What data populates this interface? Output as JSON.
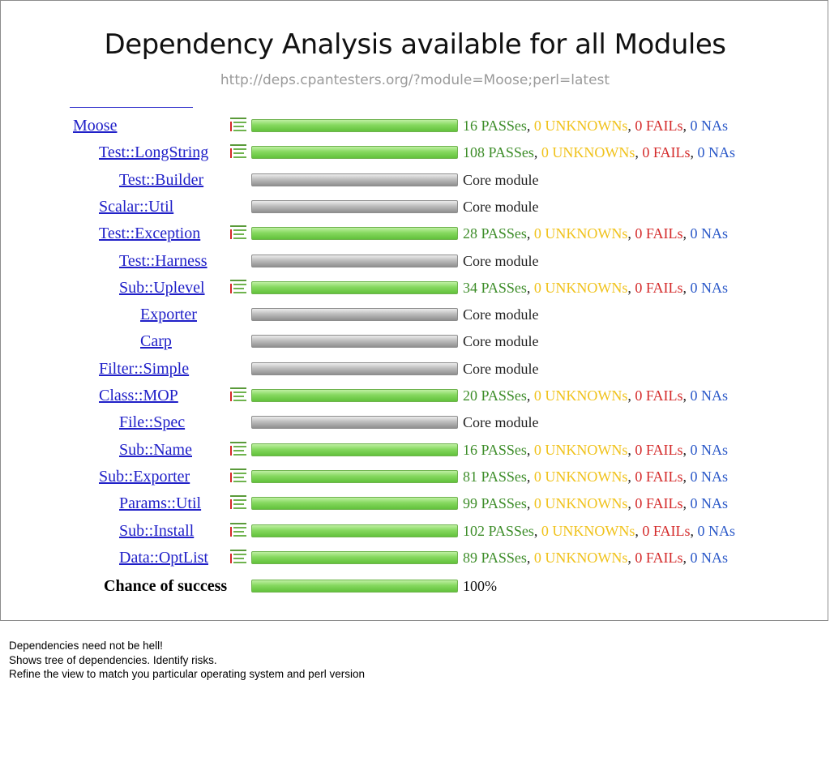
{
  "slide": {
    "title": "Dependency Analysis available for all Modules",
    "url": "http://deps.cpantesters.org/?module=Moose;perl=latest"
  },
  "colors": {
    "pass": "#3d8d29",
    "unknown": "#f0c21b",
    "fail": "#d42a2a",
    "na": "#2a58c8",
    "link": "#2020c8"
  },
  "dependencies": [
    {
      "name": "Moose",
      "level": 0,
      "type": "pass",
      "passes": "16 PASSes",
      "unknowns": "0 UNKNOWNs",
      "fails": "0 FAILs",
      "nas": "0 NAs",
      "icon": "tree-icon"
    },
    {
      "name": "Test::LongString",
      "level": 1,
      "type": "pass",
      "passes": "108 PASSes",
      "unknowns": "0 UNKNOWNs",
      "fails": "0 FAILs",
      "nas": "0 NAs",
      "icon": "tree-icon"
    },
    {
      "name": "Test::Builder",
      "level": 2,
      "type": "core",
      "core": "Core module"
    },
    {
      "name": "Scalar::Util",
      "level": 1,
      "type": "core",
      "core": "Core module"
    },
    {
      "name": "Test::Exception",
      "level": 1,
      "type": "pass",
      "passes": "28 PASSes",
      "unknowns": "0 UNKNOWNs",
      "fails": "0 FAILs",
      "nas": "0 NAs",
      "icon": "tree-icon"
    },
    {
      "name": "Test::Harness",
      "level": 2,
      "type": "core",
      "core": "Core module"
    },
    {
      "name": "Sub::Uplevel",
      "level": 2,
      "type": "pass",
      "passes": "34 PASSes",
      "unknowns": "0 UNKNOWNs",
      "fails": "0 FAILs",
      "nas": "0 NAs",
      "icon": "tree-icon"
    },
    {
      "name": "Exporter",
      "level": 3,
      "type": "core",
      "core": "Core module"
    },
    {
      "name": "Carp",
      "level": 3,
      "type": "core",
      "core": "Core module"
    },
    {
      "name": "Filter::Simple",
      "level": 1,
      "type": "core",
      "core": "Core module"
    },
    {
      "name": "Class::MOP",
      "level": 1,
      "type": "pass",
      "passes": "20 PASSes",
      "unknowns": "0 UNKNOWNs",
      "fails": "0 FAILs",
      "nas": "0 NAs",
      "icon": "tree-icon"
    },
    {
      "name": "File::Spec",
      "level": 2,
      "type": "core",
      "core": "Core module"
    },
    {
      "name": "Sub::Name",
      "level": 2,
      "type": "pass",
      "passes": "16 PASSes",
      "unknowns": "0 UNKNOWNs",
      "fails": "0 FAILs",
      "nas": "0 NAs",
      "icon": "tree-icon"
    },
    {
      "name": "Sub::Exporter",
      "level": 1,
      "type": "pass",
      "passes": "81 PASSes",
      "unknowns": "0 UNKNOWNs",
      "fails": "0 FAILs",
      "nas": "0 NAs",
      "icon": "tree-icon"
    },
    {
      "name": "Params::Util",
      "level": 2,
      "type": "pass",
      "passes": "99 PASSes",
      "unknowns": "0 UNKNOWNs",
      "fails": "0 FAILs",
      "nas": "0 NAs",
      "icon": "tree-icon"
    },
    {
      "name": "Sub::Install",
      "level": 2,
      "type": "pass",
      "passes": "102 PASSes",
      "unknowns": "0 UNKNOWNs",
      "fails": "0 FAILs",
      "nas": "0 NAs",
      "icon": "tree-icon"
    },
    {
      "name": "Data::OptList",
      "level": 2,
      "type": "pass",
      "passes": "89 PASSes",
      "unknowns": "0 UNKNOWNs",
      "fails": "0 FAILs",
      "nas": "0 NAs",
      "icon": "tree-icon"
    }
  ],
  "total": {
    "label": "Chance of success",
    "value": "100%",
    "success_fraction": 1.0
  },
  "notes": [
    "Dependencies need not be hell!",
    "Shows tree of dependencies. Identify risks.",
    "Refine the view to match you particular operating system and perl version"
  ]
}
